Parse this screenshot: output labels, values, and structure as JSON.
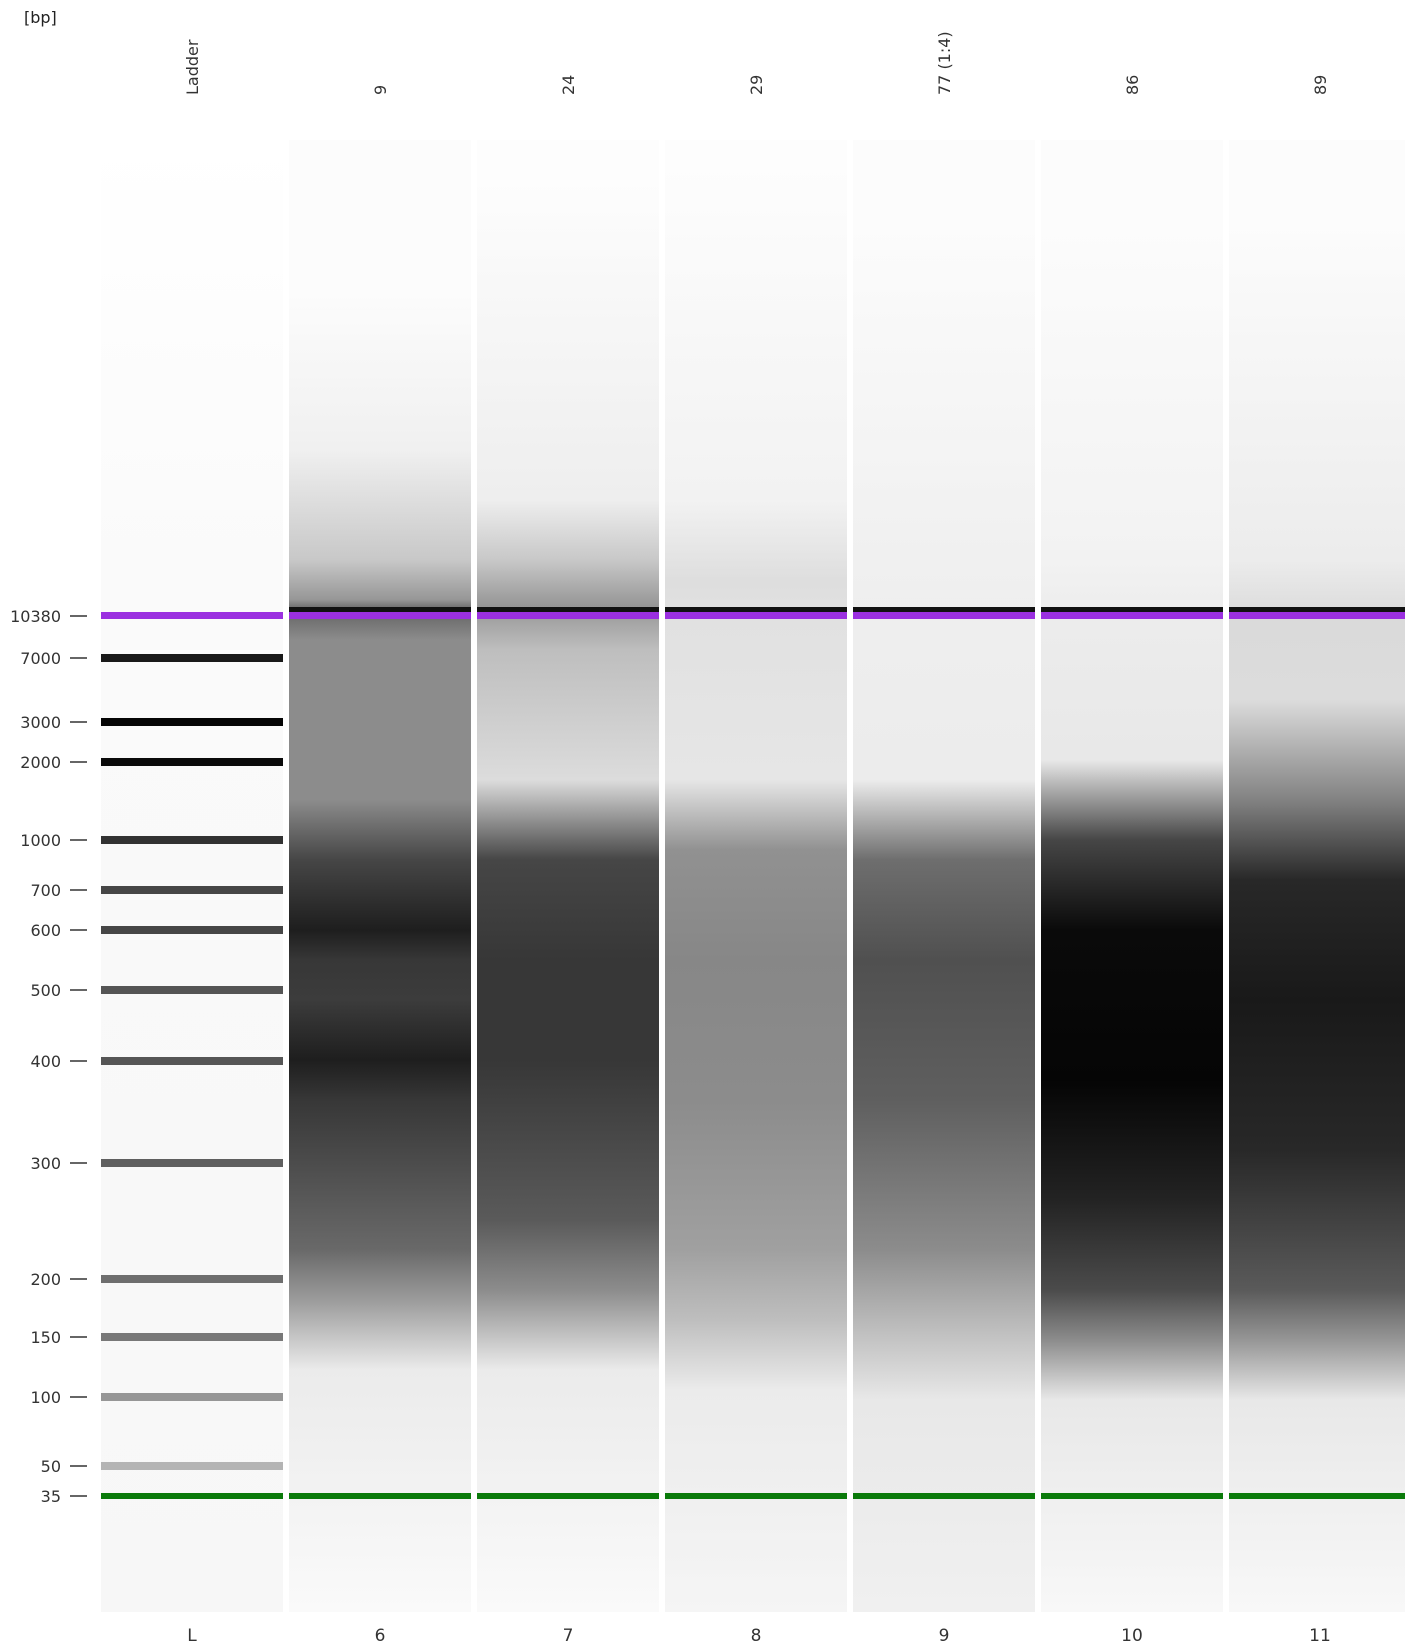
{
  "unit_label": "[bp]",
  "ladder": {
    "ticks": [
      "10380",
      "7000",
      "3000",
      "2000",
      "1000",
      "700",
      "600",
      "500",
      "400",
      "300",
      "200",
      "150",
      "100",
      "50",
      "35"
    ]
  },
  "lanes": [
    {
      "name": "Ladder",
      "number": "L",
      "kind": "ladder"
    },
    {
      "name": "9",
      "number": "6",
      "kind": "smear"
    },
    {
      "name": "24",
      "number": "7",
      "kind": "smear"
    },
    {
      "name": "29",
      "number": "8",
      "kind": "smear"
    },
    {
      "name": "77 (1:4)",
      "number": "9",
      "kind": "smear"
    },
    {
      "name": "86",
      "number": "10",
      "kind": "smear"
    },
    {
      "name": "89",
      "number": "11",
      "kind": "smear"
    }
  ],
  "marker_colors": {
    "upper": "#9b30e0",
    "lower": "#0a7a0a"
  }
}
